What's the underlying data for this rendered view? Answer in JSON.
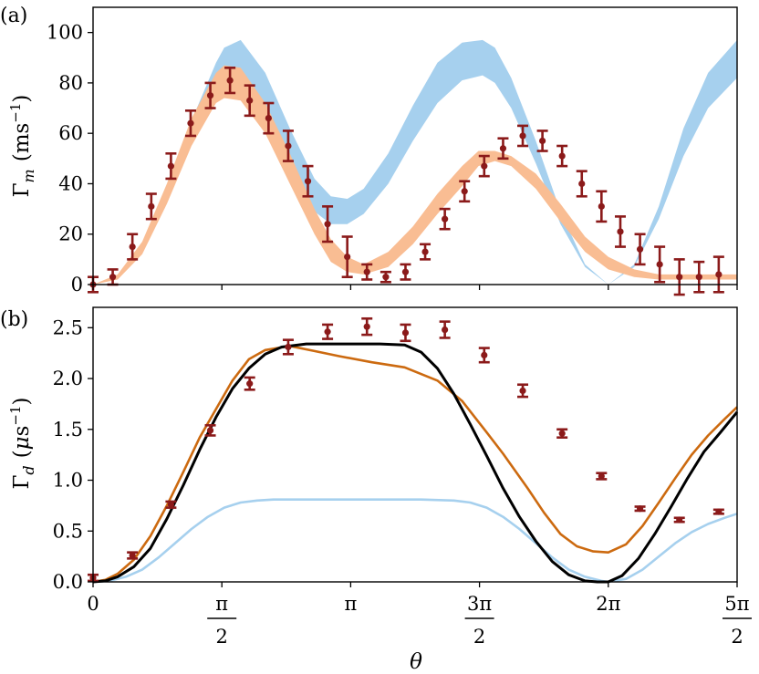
{
  "colors": {
    "model_a_band": "#a6d0ee",
    "measured_band": "#f9bd93",
    "data_points": "#8b1a1a",
    "orange_line": "#cc6a10",
    "black_line": "#000000",
    "light_blue_line": "#a6d0ee"
  },
  "chart_data": [
    {
      "panel_label": "(a)",
      "type": "scatter",
      "ylabel": "Γ_m (ms⁻¹)",
      "xlim": [
        0,
        7.854
      ],
      "ylim": [
        0,
        110
      ],
      "yticks": [
        {
          "value": 0,
          "label": "0"
        },
        {
          "value": 20,
          "label": "20"
        },
        {
          "value": 40,
          "label": "40"
        },
        {
          "value": 60,
          "label": "60"
        },
        {
          "value": 80,
          "label": "80"
        },
        {
          "value": 100,
          "label": "100"
        }
      ],
      "grid": false,
      "bands": [
        {
          "color_key": "model_a_band",
          "x": [
            0,
            0.3,
            0.6,
            0.9,
            1.2,
            1.5,
            1.6,
            1.8,
            2.1,
            2.4,
            2.7,
            2.9,
            3.1,
            3.3,
            3.6,
            3.9,
            4.2,
            4.5,
            4.75,
            4.9,
            5.1,
            5.4,
            5.7,
            6.0,
            6.283,
            6.6,
            6.9,
            7.2,
            7.5,
            7.854
          ],
          "lower": [
            0,
            3,
            14,
            33,
            56,
            75,
            80,
            79,
            66,
            46,
            29,
            24,
            24,
            28,
            40,
            57,
            72,
            81,
            83,
            80,
            70,
            48,
            24,
            7,
            0,
            7,
            26,
            51,
            70,
            82
          ],
          "upper": [
            0,
            3,
            16,
            38,
            65,
            88,
            94,
            97,
            84,
            62,
            42,
            35,
            34,
            38,
            52,
            71,
            88,
            96,
            97,
            94,
            82,
            57,
            29,
            8,
            0,
            8,
            31,
            62,
            84,
            97
          ]
        },
        {
          "color_key": "measured_band",
          "x": [
            0,
            0.3,
            0.6,
            0.9,
            1.2,
            1.5,
            1.6,
            1.8,
            2.1,
            2.4,
            2.7,
            2.9,
            3.1,
            3.3,
            3.6,
            3.9,
            4.2,
            4.5,
            4.7,
            4.9,
            5.1,
            5.4,
            5.7,
            6.0,
            6.283,
            6.6,
            6.9,
            7.2,
            7.5,
            7.854
          ],
          "lower": [
            0,
            2,
            12,
            32,
            55,
            72,
            74,
            73,
            60,
            40,
            20,
            9,
            5,
            4,
            7,
            16,
            28,
            39,
            47,
            49,
            47,
            38,
            25,
            13,
            6,
            3,
            2,
            2,
            2,
            2
          ],
          "upper": [
            0,
            4,
            17,
            40,
            66,
            84,
            87,
            86,
            72,
            52,
            30,
            18,
            11,
            8,
            13,
            23,
            36,
            47,
            53,
            53,
            51,
            44,
            32,
            19,
            11,
            6,
            4,
            4,
            4,
            4
          ]
        }
      ],
      "series": [
        {
          "color_key": "data_points",
          "kind": "errorbar",
          "x": [
            0.0,
            0.24,
            0.48,
            0.71,
            0.95,
            1.19,
            1.43,
            1.67,
            1.91,
            2.14,
            2.38,
            2.62,
            2.86,
            3.1,
            3.34,
            3.57,
            3.81,
            4.05,
            4.29,
            4.53,
            4.77,
            5.0,
            5.24,
            5.48,
            5.72,
            5.96,
            6.2,
            6.43,
            6.67,
            6.91,
            7.15,
            7.39,
            7.63
          ],
          "y": [
            0,
            3,
            15,
            31,
            47,
            64,
            75,
            81,
            73,
            66,
            55,
            41,
            24,
            11,
            5,
            3,
            5,
            13,
            26,
            37,
            47,
            54,
            59,
            57,
            51,
            40,
            31,
            21,
            14,
            8,
            3,
            3,
            4
          ],
          "err": [
            3,
            3,
            5,
            5,
            5,
            5,
            5,
            5,
            6,
            6,
            6,
            6,
            7,
            8,
            3,
            2,
            3,
            3,
            4,
            4,
            4,
            4,
            4,
            4,
            4,
            5,
            6,
            6,
            6,
            7,
            7,
            6,
            7
          ]
        }
      ]
    },
    {
      "panel_label": "(b)",
      "type": "line",
      "ylabel": "Γ_d (μs⁻¹)",
      "xlabel": "θ",
      "xlim": [
        0,
        7.854
      ],
      "ylim": [
        0,
        2.7
      ],
      "yticks": [
        {
          "value": 0,
          "label": "0.0"
        },
        {
          "value": 0.5,
          "label": "0.5"
        },
        {
          "value": 1.0,
          "label": "1.0"
        },
        {
          "value": 1.5,
          "label": "1.5"
        },
        {
          "value": 2.0,
          "label": "2.0"
        },
        {
          "value": 2.5,
          "label": "2.5"
        }
      ],
      "xticks": [
        {
          "value": 0,
          "text": "0"
        },
        {
          "value": 1.5708,
          "num": "π",
          "den": "2"
        },
        {
          "value": 3.1416,
          "text": "π"
        },
        {
          "value": 4.7124,
          "num": "3π",
          "den": "2"
        },
        {
          "value": 6.2832,
          "text": "2π"
        },
        {
          "value": 7.854,
          "num": "5π",
          "den": "2"
        }
      ],
      "grid": false,
      "series": [
        {
          "color_key": "light_blue_line",
          "kind": "line",
          "x": [
            0,
            0.2,
            0.4,
            0.6,
            0.8,
            1.0,
            1.2,
            1.4,
            1.6,
            1.8,
            2.0,
            2.2,
            2.5,
            3.0,
            3.5,
            4.0,
            4.4,
            4.6,
            4.8,
            5.0,
            5.2,
            5.4,
            5.6,
            5.8,
            6.0,
            6.2,
            6.283,
            6.5,
            6.7,
            6.9,
            7.1,
            7.3,
            7.5,
            7.7,
            7.854
          ],
          "y": [
            0,
            0.01,
            0.05,
            0.12,
            0.24,
            0.38,
            0.52,
            0.64,
            0.73,
            0.78,
            0.8,
            0.81,
            0.81,
            0.81,
            0.81,
            0.81,
            0.8,
            0.78,
            0.73,
            0.64,
            0.52,
            0.38,
            0.24,
            0.12,
            0.05,
            0.01,
            0,
            0.03,
            0.12,
            0.25,
            0.38,
            0.49,
            0.57,
            0.63,
            0.67
          ]
        },
        {
          "color_key": "orange_line",
          "kind": "line",
          "x": [
            0,
            0.15,
            0.3,
            0.5,
            0.7,
            0.9,
            1.1,
            1.3,
            1.5,
            1.7,
            1.9,
            2.1,
            2.4,
            2.7,
            3.0,
            3.4,
            3.8,
            4.2,
            4.5,
            4.8,
            5.0,
            5.3,
            5.5,
            5.7,
            5.9,
            6.1,
            6.283,
            6.5,
            6.7,
            6.9,
            7.1,
            7.3,
            7.5,
            7.7,
            7.854
          ],
          "y": [
            0,
            0.02,
            0.08,
            0.22,
            0.45,
            0.75,
            1.08,
            1.42,
            1.7,
            1.98,
            2.19,
            2.28,
            2.32,
            2.27,
            2.22,
            2.16,
            2.11,
            1.98,
            1.78,
            1.47,
            1.26,
            0.92,
            0.68,
            0.47,
            0.35,
            0.3,
            0.29,
            0.37,
            0.55,
            0.78,
            1.02,
            1.25,
            1.44,
            1.6,
            1.72
          ]
        },
        {
          "color_key": "black_line",
          "kind": "line",
          "x": [
            0,
            0.15,
            0.3,
            0.5,
            0.7,
            0.9,
            1.1,
            1.3,
            1.5,
            1.7,
            1.9,
            2.1,
            2.3,
            2.6,
            2.9,
            3.2,
            3.5,
            3.8,
            4.0,
            4.2,
            4.4,
            4.6,
            4.8,
            5.0,
            5.2,
            5.4,
            5.6,
            5.8,
            6.0,
            6.15,
            6.283,
            6.45,
            6.65,
            6.85,
            7.05,
            7.25,
            7.45,
            7.65,
            7.854
          ],
          "y": [
            0,
            0.01,
            0.05,
            0.15,
            0.33,
            0.62,
            0.95,
            1.3,
            1.62,
            1.9,
            2.1,
            2.24,
            2.31,
            2.34,
            2.34,
            2.34,
            2.34,
            2.33,
            2.26,
            2.1,
            1.85,
            1.55,
            1.24,
            0.92,
            0.64,
            0.4,
            0.2,
            0.07,
            0.01,
            0,
            0,
            0.06,
            0.23,
            0.47,
            0.74,
            1.02,
            1.28,
            1.47,
            1.67
          ]
        },
        {
          "color_key": "data_points",
          "kind": "errorbar",
          "x": [
            0.0,
            0.48,
            0.95,
            1.43,
            1.91,
            2.38,
            2.86,
            3.34,
            3.81,
            4.29,
            4.77,
            5.24,
            5.72,
            6.2,
            6.67,
            7.15,
            7.63
          ],
          "y": [
            0.04,
            0.26,
            0.76,
            1.49,
            1.95,
            2.31,
            2.46,
            2.51,
            2.45,
            2.48,
            2.23,
            1.88,
            1.46,
            1.04,
            0.72,
            0.61,
            0.69
          ],
          "err": [
            0.03,
            0.03,
            0.03,
            0.05,
            0.06,
            0.07,
            0.07,
            0.08,
            0.08,
            0.08,
            0.07,
            0.06,
            0.04,
            0.03,
            0.02,
            0.02,
            0.02
          ]
        }
      ]
    }
  ]
}
